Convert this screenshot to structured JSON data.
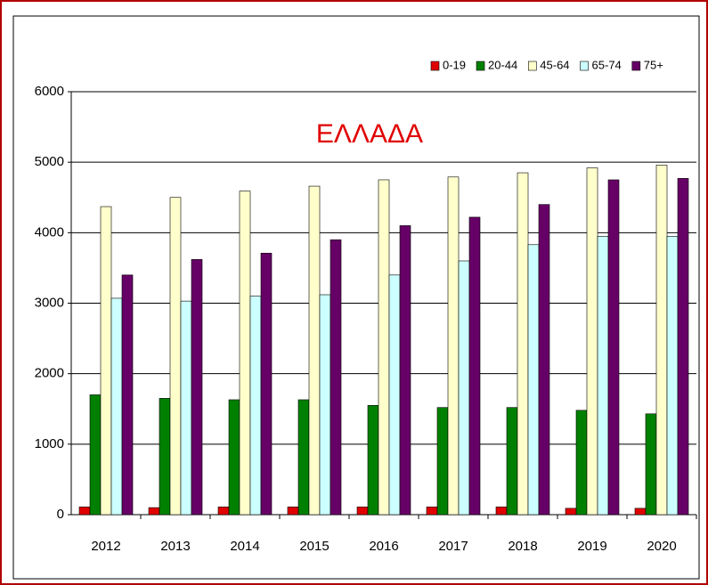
{
  "chart_data": {
    "type": "bar",
    "title": "ΕΛΛΑΔΑ",
    "categories": [
      "2012",
      "2013",
      "2014",
      "2015",
      "2016",
      "2017",
      "2018",
      "2019",
      "2020"
    ],
    "series": [
      {
        "name": "0-19",
        "color": "#e00000",
        "values": [
          110,
          100,
          110,
          110,
          110,
          110,
          110,
          90,
          90
        ]
      },
      {
        "name": "20-44",
        "color": "#008000",
        "values": [
          1700,
          1650,
          1630,
          1630,
          1550,
          1520,
          1520,
          1480,
          1430
        ]
      },
      {
        "name": "45-64",
        "color": "#ffffcc",
        "values": [
          4370,
          4500,
          4590,
          4660,
          4750,
          4790,
          4850,
          4920,
          4960
        ]
      },
      {
        "name": "65-74",
        "color": "#ccffff",
        "values": [
          3070,
          3030,
          3100,
          3120,
          3400,
          3600,
          3830,
          3950,
          3950
        ]
      },
      {
        "name": "75+",
        "color": "#660066",
        "values": [
          3400,
          3620,
          3710,
          3900,
          4100,
          4220,
          4400,
          4750,
          4770
        ]
      }
    ],
    "ylim": [
      0,
      6000
    ],
    "yticks": [
      0,
      1000,
      2000,
      3000,
      4000,
      5000,
      6000
    ],
    "grid": true,
    "legend": "top-right"
  }
}
